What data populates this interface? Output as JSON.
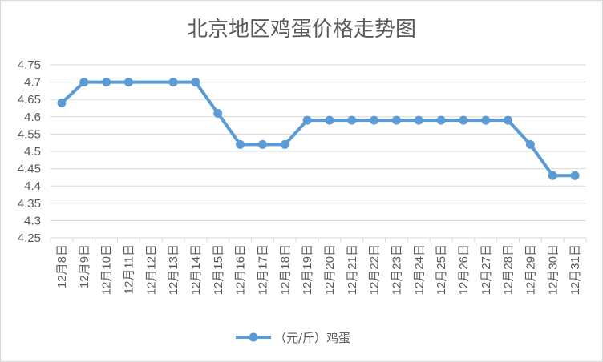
{
  "chart_data": {
    "type": "line",
    "title": "北京地区鸡蛋价格走势图",
    "categories": [
      "12月8日",
      "12月9日",
      "12月10日",
      "12月11日",
      "12月12日",
      "12月13日",
      "12月14日",
      "12月15日",
      "12月16日",
      "12月17日",
      "12月18日",
      "12月19日",
      "12月20日",
      "12月21日",
      "12月22日",
      "12月23日",
      "12月24日",
      "12月25日",
      "12月26日",
      "12月27日",
      "12月28日",
      "12月29日",
      "12月30日",
      "12月31日"
    ],
    "series": [
      {
        "name": "（元/斤）鸡蛋",
        "values": [
          4.64,
          4.7,
          4.7,
          4.7,
          null,
          4.7,
          4.7,
          4.61,
          4.52,
          4.52,
          4.52,
          4.59,
          4.59,
          4.59,
          4.59,
          4.59,
          4.59,
          4.59,
          4.59,
          4.59,
          4.59,
          4.52,
          4.43,
          4.43
        ]
      }
    ],
    "ylim": [
      4.25,
      4.75
    ],
    "yticks": [
      "4.25",
      "4.3",
      "4.35",
      "4.4",
      "4.45",
      "4.5",
      "4.55",
      "4.6",
      "4.65",
      "4.7",
      "4.75"
    ],
    "grid": true,
    "legend": "bottom",
    "colors": {
      "series": "#5b9bd5",
      "grid": "#d9d9d9",
      "text": "#595959"
    }
  }
}
